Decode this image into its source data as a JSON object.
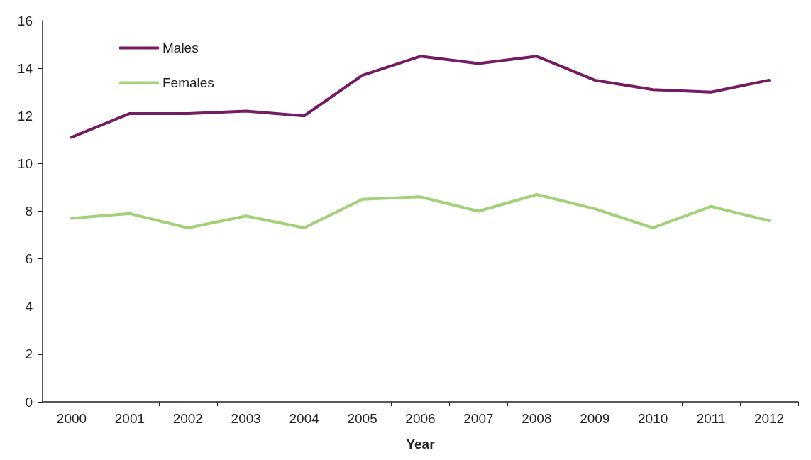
{
  "chart_data": {
    "type": "line",
    "xlabel": "Year",
    "categories": [
      "2000",
      "2001",
      "2002",
      "2003",
      "2004",
      "2005",
      "2006",
      "2007",
      "2008",
      "2009",
      "2010",
      "2011",
      "2012"
    ],
    "series": [
      {
        "name": "Males",
        "color": "#741b63",
        "values": [
          11.1,
          12.1,
          12.1,
          12.2,
          12.0,
          13.7,
          14.5,
          14.2,
          14.5,
          13.5,
          13.1,
          13.0,
          13.5
        ]
      },
      {
        "name": "Females",
        "color": "#a1d176",
        "values": [
          7.7,
          7.9,
          7.3,
          7.8,
          7.3,
          8.5,
          8.6,
          8.0,
          8.7,
          8.1,
          7.3,
          8.2,
          7.6
        ]
      }
    ],
    "ylim": [
      0,
      16
    ],
    "yticks": [
      0,
      2,
      4,
      6,
      8,
      10,
      12,
      14,
      16
    ],
    "grid": false,
    "legend": "top left",
    "marker": "none",
    "line_style": "solid"
  }
}
